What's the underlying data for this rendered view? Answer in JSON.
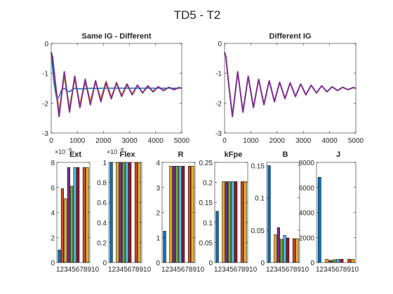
{
  "figure": {
    "title": "TD5 - T2"
  },
  "colors": [
    "#0072BD",
    "#D95319",
    "#EDB120",
    "#7E2F8E",
    "#77AC30",
    "#4DBEEE",
    "#A2142F",
    "#0072BD",
    "#D95319",
    "#EDB120"
  ],
  "chart_data": [
    {
      "type": "line",
      "title": "Same IG - Different",
      "xlim": [
        0,
        5000
      ],
      "ylim": [
        -3,
        0
      ],
      "xticks": [
        0,
        1000,
        2000,
        3000,
        4000,
        5000
      ],
      "yticks": [
        -3,
        -2,
        -1,
        0
      ],
      "grid": false,
      "series": [
        {
          "x": [
            0,
            100,
            200,
            250,
            300,
            400,
            500,
            600,
            700,
            800,
            900,
            1000,
            1250,
            1500,
            1750,
            2000,
            2500,
            3000,
            3500,
            4000,
            5000
          ],
          "y": [
            -0.3,
            -1.3,
            -1.8,
            -1.85,
            -1.78,
            -1.55,
            -1.5,
            -1.58,
            -1.62,
            -1.55,
            -1.5,
            -1.52,
            -1.52,
            -1.5,
            -1.51,
            -1.5,
            -1.5,
            -1.5,
            -1.5,
            -1.5,
            -1.5
          ]
        },
        {
          "x": [
            0,
            50,
            150,
            300,
            500,
            700,
            900,
            1100,
            1300,
            1500,
            1700,
            1900,
            2100,
            2300,
            2500,
            2700,
            2900,
            3100,
            3300,
            3500,
            3700,
            3900,
            4100,
            4300,
            4500,
            4700,
            4900,
            5000
          ],
          "y": [
            -0.3,
            -0.45,
            -1.2,
            -2.3,
            -1.1,
            -2.2,
            -1.2,
            -2.1,
            -1.3,
            -2.0,
            -1.3,
            -1.9,
            -1.35,
            -1.85,
            -1.3,
            -1.75,
            -1.4,
            -1.7,
            -1.4,
            -1.65,
            -1.45,
            -1.6,
            -1.45,
            -1.58,
            -1.47,
            -1.55,
            -1.48,
            -1.5
          ]
        },
        {
          "x": [
            0,
            50,
            150,
            300,
            500,
            700,
            900,
            1100,
            1300,
            1500,
            1700,
            1900,
            2100,
            2300,
            2500,
            2700,
            2900,
            3100,
            3300,
            3500,
            3700,
            3900,
            4100,
            4300,
            4500,
            4700,
            4900,
            5000
          ],
          "y": [
            -0.3,
            -0.45,
            -1.25,
            -2.2,
            -1.15,
            -2.1,
            -1.2,
            -2.0,
            -1.25,
            -1.9,
            -1.3,
            -1.82,
            -1.25,
            -1.78,
            -1.35,
            -1.72,
            -1.35,
            -1.68,
            -1.4,
            -1.65,
            -1.42,
            -1.6,
            -1.45,
            -1.57,
            -1.47,
            -1.54,
            -1.49,
            -1.5
          ]
        },
        {
          "x": [
            0,
            50,
            150,
            300,
            500,
            700,
            900,
            1100,
            1300,
            1500,
            1700,
            1900,
            2100,
            2300,
            2500,
            2700,
            2900,
            3100,
            3300,
            3500,
            3700,
            3900,
            4100,
            4300,
            4500,
            4700,
            4900,
            5000
          ],
          "y": [
            -0.3,
            -0.45,
            -1.3,
            -2.45,
            -0.95,
            -2.3,
            -1.1,
            -2.15,
            -1.2,
            -2.05,
            -1.25,
            -1.95,
            -1.3,
            -1.85,
            -1.32,
            -1.78,
            -1.36,
            -1.72,
            -1.4,
            -1.66,
            -1.42,
            -1.62,
            -1.45,
            -1.58,
            -1.47,
            -1.55,
            -1.48,
            -1.5
          ]
        }
      ]
    },
    {
      "type": "line",
      "title": "Different IG",
      "xlim": [
        0,
        5000
      ],
      "ylim": [
        -3,
        0
      ],
      "xticks": [
        0,
        1000,
        2000,
        3000,
        4000,
        5000
      ],
      "yticks": [
        -3,
        -2,
        -1,
        0
      ],
      "grid": false,
      "series": [
        {
          "x": [
            0,
            50,
            150,
            300,
            500,
            700,
            900,
            1100,
            1300,
            1500,
            1700,
            1900,
            2100,
            2300,
            2500,
            2700,
            2900,
            3100,
            3300,
            3500,
            3700,
            3900,
            4100,
            4300,
            4500,
            4700,
            4900,
            5000
          ],
          "y": [
            -0.3,
            -0.45,
            -1.3,
            -2.45,
            -0.95,
            -2.3,
            -1.1,
            -2.15,
            -1.2,
            -2.05,
            -1.25,
            -1.95,
            -1.3,
            -1.85,
            -1.32,
            -1.78,
            -1.36,
            -1.72,
            -1.4,
            -1.66,
            -1.42,
            -1.62,
            -1.45,
            -1.58,
            -1.47,
            -1.55,
            -1.48,
            -1.5
          ]
        },
        {
          "x": [
            0,
            50,
            150,
            300,
            500,
            700,
            900,
            1100,
            1300,
            1500,
            1700,
            1900,
            2100,
            2300,
            2500,
            2700,
            2900,
            3100,
            3300,
            3500,
            3700,
            3900,
            4100,
            4300,
            4500,
            4700,
            4900,
            5000
          ],
          "y": [
            -0.3,
            -0.45,
            -1.3,
            -2.45,
            -0.95,
            -2.3,
            -1.1,
            -2.15,
            -1.2,
            -2.05,
            -1.25,
            -1.95,
            -1.3,
            -1.85,
            -1.32,
            -1.78,
            -1.36,
            -1.72,
            -1.4,
            -1.66,
            -1.42,
            -1.62,
            -1.45,
            -1.58,
            -1.47,
            -1.55,
            -1.48,
            -1.5
          ]
        }
      ]
    },
    {
      "type": "bar",
      "title": "Ext",
      "exponent_label": "×10",
      "exponent_power": "-6",
      "categories": [
        1,
        2,
        3,
        4,
        5,
        6,
        7,
        8,
        9,
        10
      ],
      "xticklabels": "12345678910",
      "values": [
        1.0,
        5.9,
        5.1,
        7.6,
        6.1,
        7.6,
        7.6,
        0,
        7.6,
        7.6
      ],
      "ylim": [
        0,
        8
      ],
      "yticks": [
        0,
        2,
        4,
        6,
        8
      ]
    },
    {
      "type": "bar",
      "title": "Flex",
      "exponent_label": "×10",
      "exponent_power": "-6",
      "categories": [
        1,
        2,
        3,
        4,
        5,
        6,
        7,
        8,
        9,
        10
      ],
      "xticklabels": "12345678910",
      "values": [
        1.0,
        0,
        1.0,
        1.0,
        1.0,
        1.0,
        1.0,
        0,
        1.0,
        1.0
      ],
      "ylim": [
        0,
        1
      ],
      "yticks": [
        0,
        0.2,
        0.4,
        0.6,
        0.8,
        1
      ]
    },
    {
      "type": "bar",
      "title": "R",
      "categories": [
        1,
        2,
        3,
        4,
        5,
        6,
        7,
        8,
        9,
        10
      ],
      "xticklabels": "12345678910",
      "values": [
        1.25,
        0,
        3.85,
        3.85,
        3.85,
        3.85,
        3.85,
        0,
        3.85,
        3.85
      ],
      "ylim": [
        0,
        4
      ],
      "yticks": [
        0,
        1,
        2,
        3,
        4
      ]
    },
    {
      "type": "bar",
      "title": "kFpe",
      "categories": [
        1,
        2,
        3,
        4,
        5,
        6,
        7,
        8,
        9,
        10
      ],
      "xticklabels": "12345678910",
      "values": [
        0.128,
        0,
        0.202,
        0.202,
        0.202,
        0.202,
        0.202,
        0,
        0.202,
        0.202
      ],
      "ylim": [
        0,
        0.25
      ],
      "yticks": [
        0,
        0.05,
        0.1,
        0.15,
        0.2,
        0.25
      ]
    },
    {
      "type": "bar",
      "title": "B",
      "categories": [
        1,
        2,
        3,
        4,
        5,
        6,
        7,
        8,
        9,
        10
      ],
      "xticklabels": "12345678910",
      "values": [
        0.15,
        0,
        0.043,
        0.054,
        0.036,
        0.042,
        0.038,
        0,
        0.037,
        0.037
      ],
      "ylim": [
        0,
        0.155
      ],
      "yticks": [
        0,
        0.05,
        0.1,
        0.15
      ]
    },
    {
      "type": "bar",
      "title": "J",
      "categories": [
        1,
        2,
        3,
        4,
        5,
        6,
        7,
        8,
        9,
        10
      ],
      "xticklabels": "12345678910",
      "values": [
        6800,
        0,
        260,
        170,
        230,
        260,
        260,
        0,
        260,
        260
      ],
      "ylim": [
        0,
        8000
      ],
      "yticks": [
        0,
        2000,
        4000,
        6000,
        8000
      ]
    }
  ]
}
